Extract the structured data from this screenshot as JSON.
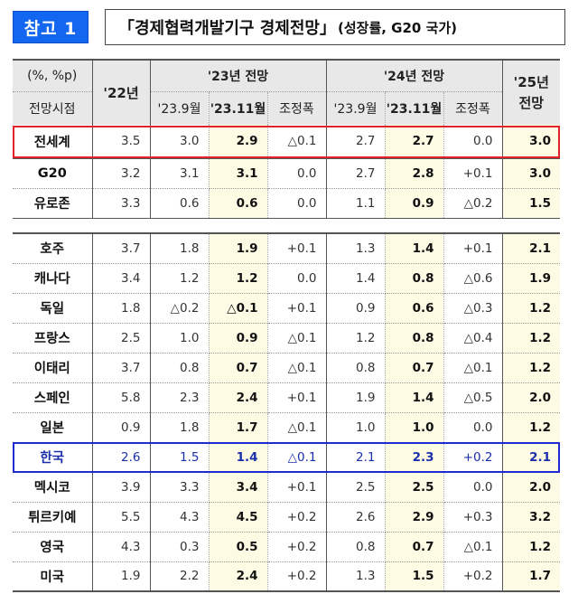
{
  "badge": {
    "label": "참고 1",
    "color": "#1366f0"
  },
  "title": {
    "main": "「경제협력개발기구 경제전망」",
    "sub": "(성장률, G20 국가)"
  },
  "table": {
    "unit": "(%, %p)",
    "row_header": "전망시점",
    "col_2022": "'22년",
    "group_2023": "'23년 전망",
    "group_2024": "'24년 전망",
    "col_2025": "'25년 전망",
    "sub_sep": "'23.9월",
    "sub_nov": "'23.11월",
    "sub_adj": "조정폭",
    "highlight_color": "#fdfbe3",
    "rows": [
      {
        "name": "전세계",
        "y22": "3.5",
        "y23_sep": "3.0",
        "y23_nov": "2.9",
        "y23_adj": "△0.1",
        "y24_sep": "2.7",
        "y24_nov": "2.7",
        "y24_adj": "0.0",
        "y25": "3.0",
        "box": "red"
      },
      {
        "name": "G20",
        "y22": "3.2",
        "y23_sep": "3.1",
        "y23_nov": "3.1",
        "y23_adj": "0.0",
        "y24_sep": "2.7",
        "y24_nov": "2.8",
        "y24_adj": "+0.1",
        "y25": "3.0"
      },
      {
        "name": "유로존",
        "y22": "3.3",
        "y23_sep": "0.6",
        "y23_nov": "0.6",
        "y23_adj": "0.0",
        "y24_sep": "1.1",
        "y24_nov": "0.9",
        "y24_adj": "△0.2",
        "y25": "1.5"
      },
      {
        "name": "호주",
        "y22": "3.7",
        "y23_sep": "1.8",
        "y23_nov": "1.9",
        "y23_adj": "+0.1",
        "y24_sep": "1.3",
        "y24_nov": "1.4",
        "y24_adj": "+0.1",
        "y25": "2.1"
      },
      {
        "name": "캐나다",
        "y22": "3.4",
        "y23_sep": "1.2",
        "y23_nov": "1.2",
        "y23_adj": "0.0",
        "y24_sep": "1.4",
        "y24_nov": "0.8",
        "y24_adj": "△0.6",
        "y25": "1.9"
      },
      {
        "name": "독일",
        "y22": "1.8",
        "y23_sep": "△0.2",
        "y23_nov": "△0.1",
        "y23_adj": "+0.1",
        "y24_sep": "0.9",
        "y24_nov": "0.6",
        "y24_adj": "△0.3",
        "y25": "1.2"
      },
      {
        "name": "프랑스",
        "y22": "2.5",
        "y23_sep": "1.0",
        "y23_nov": "0.9",
        "y23_adj": "△0.1",
        "y24_sep": "1.2",
        "y24_nov": "0.8",
        "y24_adj": "△0.4",
        "y25": "1.2"
      },
      {
        "name": "이태리",
        "y22": "3.7",
        "y23_sep": "0.8",
        "y23_nov": "0.7",
        "y23_adj": "△0.1",
        "y24_sep": "0.8",
        "y24_nov": "0.7",
        "y24_adj": "△0.1",
        "y25": "1.2"
      },
      {
        "name": "스페인",
        "y22": "5.8",
        "y23_sep": "2.3",
        "y23_nov": "2.4",
        "y23_adj": "+0.1",
        "y24_sep": "1.9",
        "y24_nov": "1.4",
        "y24_adj": "△0.5",
        "y25": "2.0"
      },
      {
        "name": "일본",
        "y22": "0.9",
        "y23_sep": "1.8",
        "y23_nov": "1.7",
        "y23_adj": "△0.1",
        "y24_sep": "1.0",
        "y24_nov": "1.0",
        "y24_adj": "0.0",
        "y25": "1.2"
      },
      {
        "name": "한국",
        "y22": "2.6",
        "y23_sep": "1.5",
        "y23_nov": "1.4",
        "y23_adj": "△0.1",
        "y24_sep": "2.1",
        "y24_nov": "2.3",
        "y24_adj": "+0.2",
        "y25": "2.1",
        "box": "blue"
      },
      {
        "name": "멕시코",
        "y22": "3.9",
        "y23_sep": "3.3",
        "y23_nov": "3.4",
        "y23_adj": "+0.1",
        "y24_sep": "2.5",
        "y24_nov": "2.5",
        "y24_adj": "0.0",
        "y25": "2.0"
      },
      {
        "name": "튀르키예",
        "y22": "5.5",
        "y23_sep": "4.3",
        "y23_nov": "4.5",
        "y23_adj": "+0.2",
        "y24_sep": "2.6",
        "y24_nov": "2.9",
        "y24_adj": "+0.3",
        "y25": "3.2"
      },
      {
        "name": "영국",
        "y22": "4.3",
        "y23_sep": "0.3",
        "y23_nov": "0.5",
        "y23_adj": "+0.2",
        "y24_sep": "0.8",
        "y24_nov": "0.7",
        "y24_adj": "△0.1",
        "y25": "1.2"
      },
      {
        "name": "미국",
        "y22": "1.9",
        "y23_sep": "2.2",
        "y23_nov": "2.4",
        "y23_adj": "+0.2",
        "y24_sep": "1.3",
        "y24_nov": "1.5",
        "y24_adj": "+0.2",
        "y25": "1.7"
      }
    ]
  }
}
